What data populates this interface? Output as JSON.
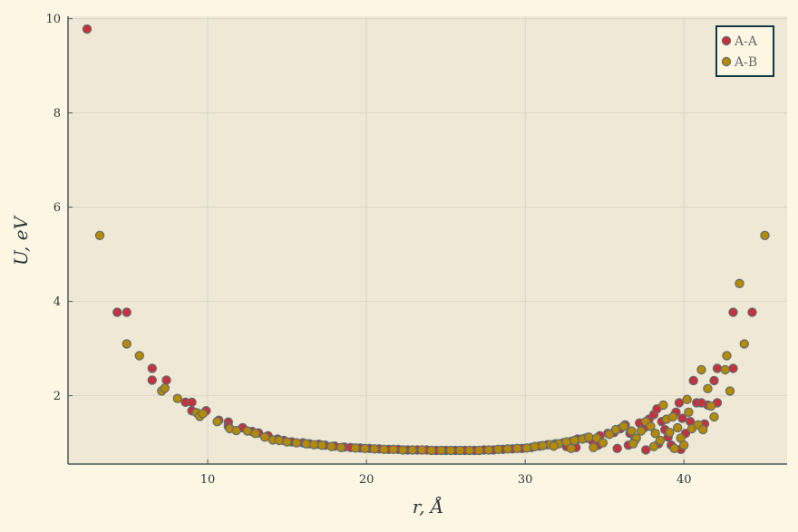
{
  "chart_data": {
    "type": "scatter",
    "title": "",
    "xlabel": "r, Å",
    "ylabel": "U, eV",
    "xlim": [
      1.2,
      46.5
    ],
    "ylim": [
      0.55,
      10.05
    ],
    "xticks": [
      10,
      20,
      30,
      40
    ],
    "yticks": [
      2,
      4,
      6,
      8,
      10
    ],
    "grid": true,
    "legend_position": "top-right",
    "series": [
      {
        "name": "A-A",
        "color": "#c8303a",
        "points": [
          [
            2.4,
            9.78
          ],
          [
            4.3,
            3.77
          ],
          [
            4.9,
            3.77
          ],
          [
            6.5,
            2.58
          ],
          [
            6.5,
            2.33
          ],
          [
            7.4,
            2.33
          ],
          [
            8.6,
            1.86
          ],
          [
            9.0,
            1.86
          ],
          [
            9.0,
            1.68
          ],
          [
            9.9,
            1.68
          ],
          [
            10.7,
            1.48
          ],
          [
            11.3,
            1.44
          ],
          [
            11.3,
            1.35
          ],
          [
            12.2,
            1.32
          ],
          [
            12.8,
            1.24
          ],
          [
            13.2,
            1.21
          ],
          [
            13.8,
            1.15
          ],
          [
            14.4,
            1.08
          ],
          [
            14.8,
            1.05
          ],
          [
            15.3,
            1.02
          ],
          [
            16.0,
            1.0
          ],
          [
            16.4,
            0.98
          ],
          [
            17.0,
            0.97
          ],
          [
            17.4,
            0.95
          ],
          [
            18.0,
            0.93
          ],
          [
            18.6,
            0.91
          ],
          [
            19.0,
            0.9
          ],
          [
            19.6,
            0.89
          ],
          [
            20.2,
            0.88
          ],
          [
            20.8,
            0.87
          ],
          [
            21.4,
            0.86
          ],
          [
            22.0,
            0.86
          ],
          [
            22.6,
            0.85
          ],
          [
            23.2,
            0.85
          ],
          [
            23.8,
            0.85
          ],
          [
            24.4,
            0.84
          ],
          [
            25.0,
            0.84
          ],
          [
            25.6,
            0.84
          ],
          [
            26.2,
            0.84
          ],
          [
            26.8,
            0.84
          ],
          [
            27.4,
            0.85
          ],
          [
            28.0,
            0.85
          ],
          [
            28.6,
            0.86
          ],
          [
            29.2,
            0.87
          ],
          [
            29.8,
            0.88
          ],
          [
            30.4,
            0.9
          ],
          [
            30.9,
            0.93
          ],
          [
            31.4,
            0.96
          ],
          [
            31.9,
            0.98
          ],
          [
            32.4,
            1.0
          ],
          [
            32.9,
            1.03
          ],
          [
            33.3,
            1.08
          ],
          [
            33.8,
            1.1
          ],
          [
            34.2,
            1.05
          ],
          [
            34.7,
            1.15
          ],
          [
            35.2,
            1.2
          ],
          [
            35.6,
            1.22
          ],
          [
            36.0,
            1.3
          ],
          [
            36.3,
            1.38
          ],
          [
            36.6,
            1.2
          ],
          [
            36.9,
            1.05
          ],
          [
            37.2,
            1.42
          ],
          [
            37.5,
            1.32
          ],
          [
            37.8,
            1.5
          ],
          [
            38.1,
            1.6
          ],
          [
            38.3,
            1.72
          ],
          [
            38.6,
            1.45
          ],
          [
            38.8,
            1.28
          ],
          [
            39.0,
            1.12
          ],
          [
            39.2,
            0.95
          ],
          [
            39.5,
            1.65
          ],
          [
            39.7,
            1.85
          ],
          [
            39.9,
            1.52
          ],
          [
            40.1,
            1.2
          ],
          [
            40.4,
            1.45
          ],
          [
            40.6,
            2.32
          ],
          [
            40.8,
            1.85
          ],
          [
            41.1,
            1.85
          ],
          [
            41.3,
            1.4
          ],
          [
            41.5,
            1.8
          ],
          [
            41.9,
            2.32
          ],
          [
            42.1,
            1.85
          ],
          [
            42.1,
            2.58
          ],
          [
            43.1,
            2.58
          ],
          [
            43.1,
            3.77
          ],
          [
            44.3,
            3.77
          ],
          [
            36.5,
            0.95
          ],
          [
            34.6,
            0.95
          ],
          [
            33.2,
            0.9
          ],
          [
            32.6,
            0.92
          ],
          [
            35.8,
            0.88
          ],
          [
            38.4,
            0.98
          ],
          [
            39.8,
            0.86
          ],
          [
            37.6,
            0.85
          ]
        ]
      },
      {
        "name": "A-B",
        "color": "#b58900",
        "points": [
          [
            3.2,
            5.4
          ],
          [
            4.9,
            3.1
          ],
          [
            5.7,
            2.85
          ],
          [
            7.1,
            2.1
          ],
          [
            7.3,
            2.16
          ],
          [
            8.1,
            1.94
          ],
          [
            9.3,
            1.64
          ],
          [
            9.5,
            1.56
          ],
          [
            9.7,
            1.62
          ],
          [
            10.6,
            1.45
          ],
          [
            11.4,
            1.3
          ],
          [
            11.8,
            1.26
          ],
          [
            12.5,
            1.25
          ],
          [
            13.0,
            1.2
          ],
          [
            13.6,
            1.12
          ],
          [
            14.1,
            1.06
          ],
          [
            14.5,
            1.05
          ],
          [
            15.0,
            1.02
          ],
          [
            15.6,
            1.0
          ],
          [
            16.2,
            0.98
          ],
          [
            16.7,
            0.96
          ],
          [
            17.2,
            0.95
          ],
          [
            17.8,
            0.92
          ],
          [
            18.4,
            0.9
          ],
          [
            19.3,
            0.89
          ],
          [
            19.9,
            0.88
          ],
          [
            20.5,
            0.87
          ],
          [
            21.1,
            0.86
          ],
          [
            21.7,
            0.86
          ],
          [
            22.3,
            0.85
          ],
          [
            22.9,
            0.85
          ],
          [
            23.5,
            0.85
          ],
          [
            24.1,
            0.84
          ],
          [
            24.7,
            0.84
          ],
          [
            25.3,
            0.84
          ],
          [
            25.9,
            0.84
          ],
          [
            26.5,
            0.84
          ],
          [
            27.1,
            0.84
          ],
          [
            27.7,
            0.85
          ],
          [
            28.3,
            0.86
          ],
          [
            28.9,
            0.87
          ],
          [
            29.5,
            0.88
          ],
          [
            30.1,
            0.89
          ],
          [
            30.6,
            0.92
          ],
          [
            31.1,
            0.94
          ],
          [
            31.6,
            0.96
          ],
          [
            32.1,
            0.98
          ],
          [
            32.6,
            1.02
          ],
          [
            33.1,
            1.05
          ],
          [
            33.6,
            1.08
          ],
          [
            34.0,
            1.12
          ],
          [
            34.5,
            1.1
          ],
          [
            34.9,
            1.0
          ],
          [
            35.3,
            1.18
          ],
          [
            35.7,
            1.28
          ],
          [
            36.2,
            1.35
          ],
          [
            36.7,
            1.25
          ],
          [
            37.0,
            1.1
          ],
          [
            37.3,
            1.25
          ],
          [
            37.6,
            1.45
          ],
          [
            37.9,
            1.35
          ],
          [
            38.2,
            1.2
          ],
          [
            38.5,
            1.05
          ],
          [
            38.7,
            1.8
          ],
          [
            38.9,
            1.5
          ],
          [
            39.1,
            1.22
          ],
          [
            39.3,
            1.55
          ],
          [
            39.6,
            1.32
          ],
          [
            39.8,
            1.1
          ],
          [
            40.0,
            0.95
          ],
          [
            40.2,
            1.92
          ],
          [
            40.3,
            1.65
          ],
          [
            40.5,
            1.3
          ],
          [
            40.9,
            1.38
          ],
          [
            41.1,
            2.55
          ],
          [
            41.2,
            1.28
          ],
          [
            41.5,
            2.15
          ],
          [
            41.7,
            1.78
          ],
          [
            41.9,
            1.55
          ],
          [
            42.6,
            2.55
          ],
          [
            42.7,
            2.85
          ],
          [
            42.9,
            2.1
          ],
          [
            43.5,
            4.38
          ],
          [
            43.8,
            3.1
          ],
          [
            45.1,
            5.4
          ],
          [
            36.8,
            0.98
          ],
          [
            34.3,
            0.9
          ],
          [
            32.9,
            0.88
          ],
          [
            31.8,
            0.93
          ],
          [
            38.1,
            0.92
          ],
          [
            39.4,
            0.88
          ]
        ]
      }
    ]
  }
}
